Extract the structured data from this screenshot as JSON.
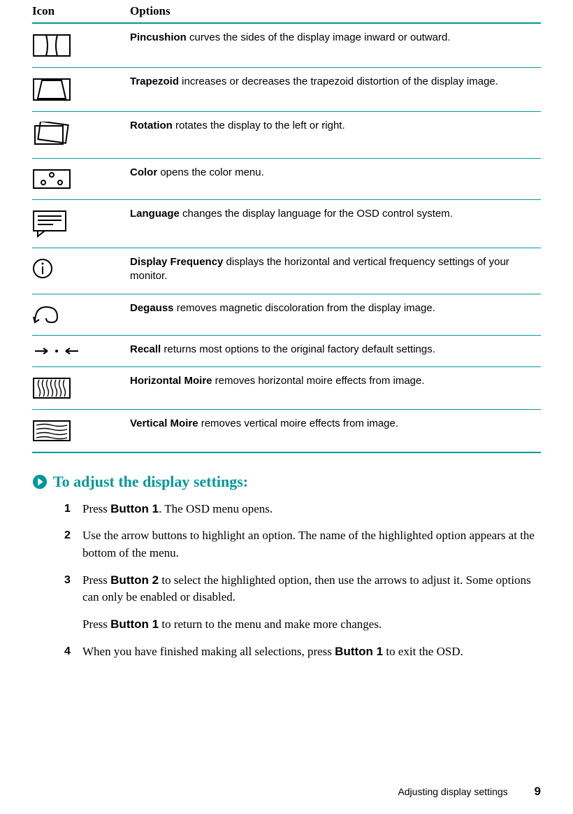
{
  "colors": {
    "accent": "#009999",
    "text": "#000000",
    "bg": "#ffffff"
  },
  "table": {
    "header": {
      "icon": "Icon",
      "options": "Options"
    },
    "rows": [
      {
        "icon": "pincushion",
        "bold": "Pincushion",
        "text": " curves the sides of the display image inward or outward."
      },
      {
        "icon": "trapezoid",
        "bold": "Trapezoid",
        "text": " increases or decreases the trapezoid distortion of the display image."
      },
      {
        "icon": "rotation",
        "bold": "Rotation",
        "text": " rotates the display to the left or right."
      },
      {
        "icon": "color",
        "bold": "Color",
        "text": " opens the color menu."
      },
      {
        "icon": "language",
        "bold": "Language",
        "text": " changes the display language for the OSD control system."
      },
      {
        "icon": "freq",
        "bold": "Display Frequency",
        "text": " displays the horizontal and vertical frequency settings of your monitor."
      },
      {
        "icon": "degauss",
        "bold": "Degauss",
        "text": " removes magnetic discoloration from the display image."
      },
      {
        "icon": "recall",
        "bold": "Recall",
        "text": " returns most options to the original factory default settings."
      },
      {
        "icon": "hmoire",
        "bold": "Horizontal Moire",
        "text": " removes horizontal moire effects from image."
      },
      {
        "icon": "vmoire",
        "bold": "Vertical Moire",
        "text": " removes vertical moire effects from image."
      }
    ]
  },
  "section": {
    "title": "To adjust the display settings:"
  },
  "steps": [
    {
      "n": "1",
      "html": "Press <b>Button 1</b>. The OSD menu opens."
    },
    {
      "n": "2",
      "html": "Use the arrow buttons to highlight an option. The name of the highlighted option appears at the bottom of the menu."
    },
    {
      "n": "3",
      "html": "Press <b>Button 2</b> to select the highlighted option, then use the arrows to adjust it. Some options can only be enabled or disabled."
    },
    {
      "n": "3b",
      "sub": true,
      "html": "Press <b>Button 1</b> to return to the menu and make more changes."
    },
    {
      "n": "4",
      "html": "When you have finished making all selections, press <b>Button 1</b> to exit the OSD."
    }
  ],
  "footer": {
    "label": "Adjusting display settings",
    "page": "9"
  }
}
